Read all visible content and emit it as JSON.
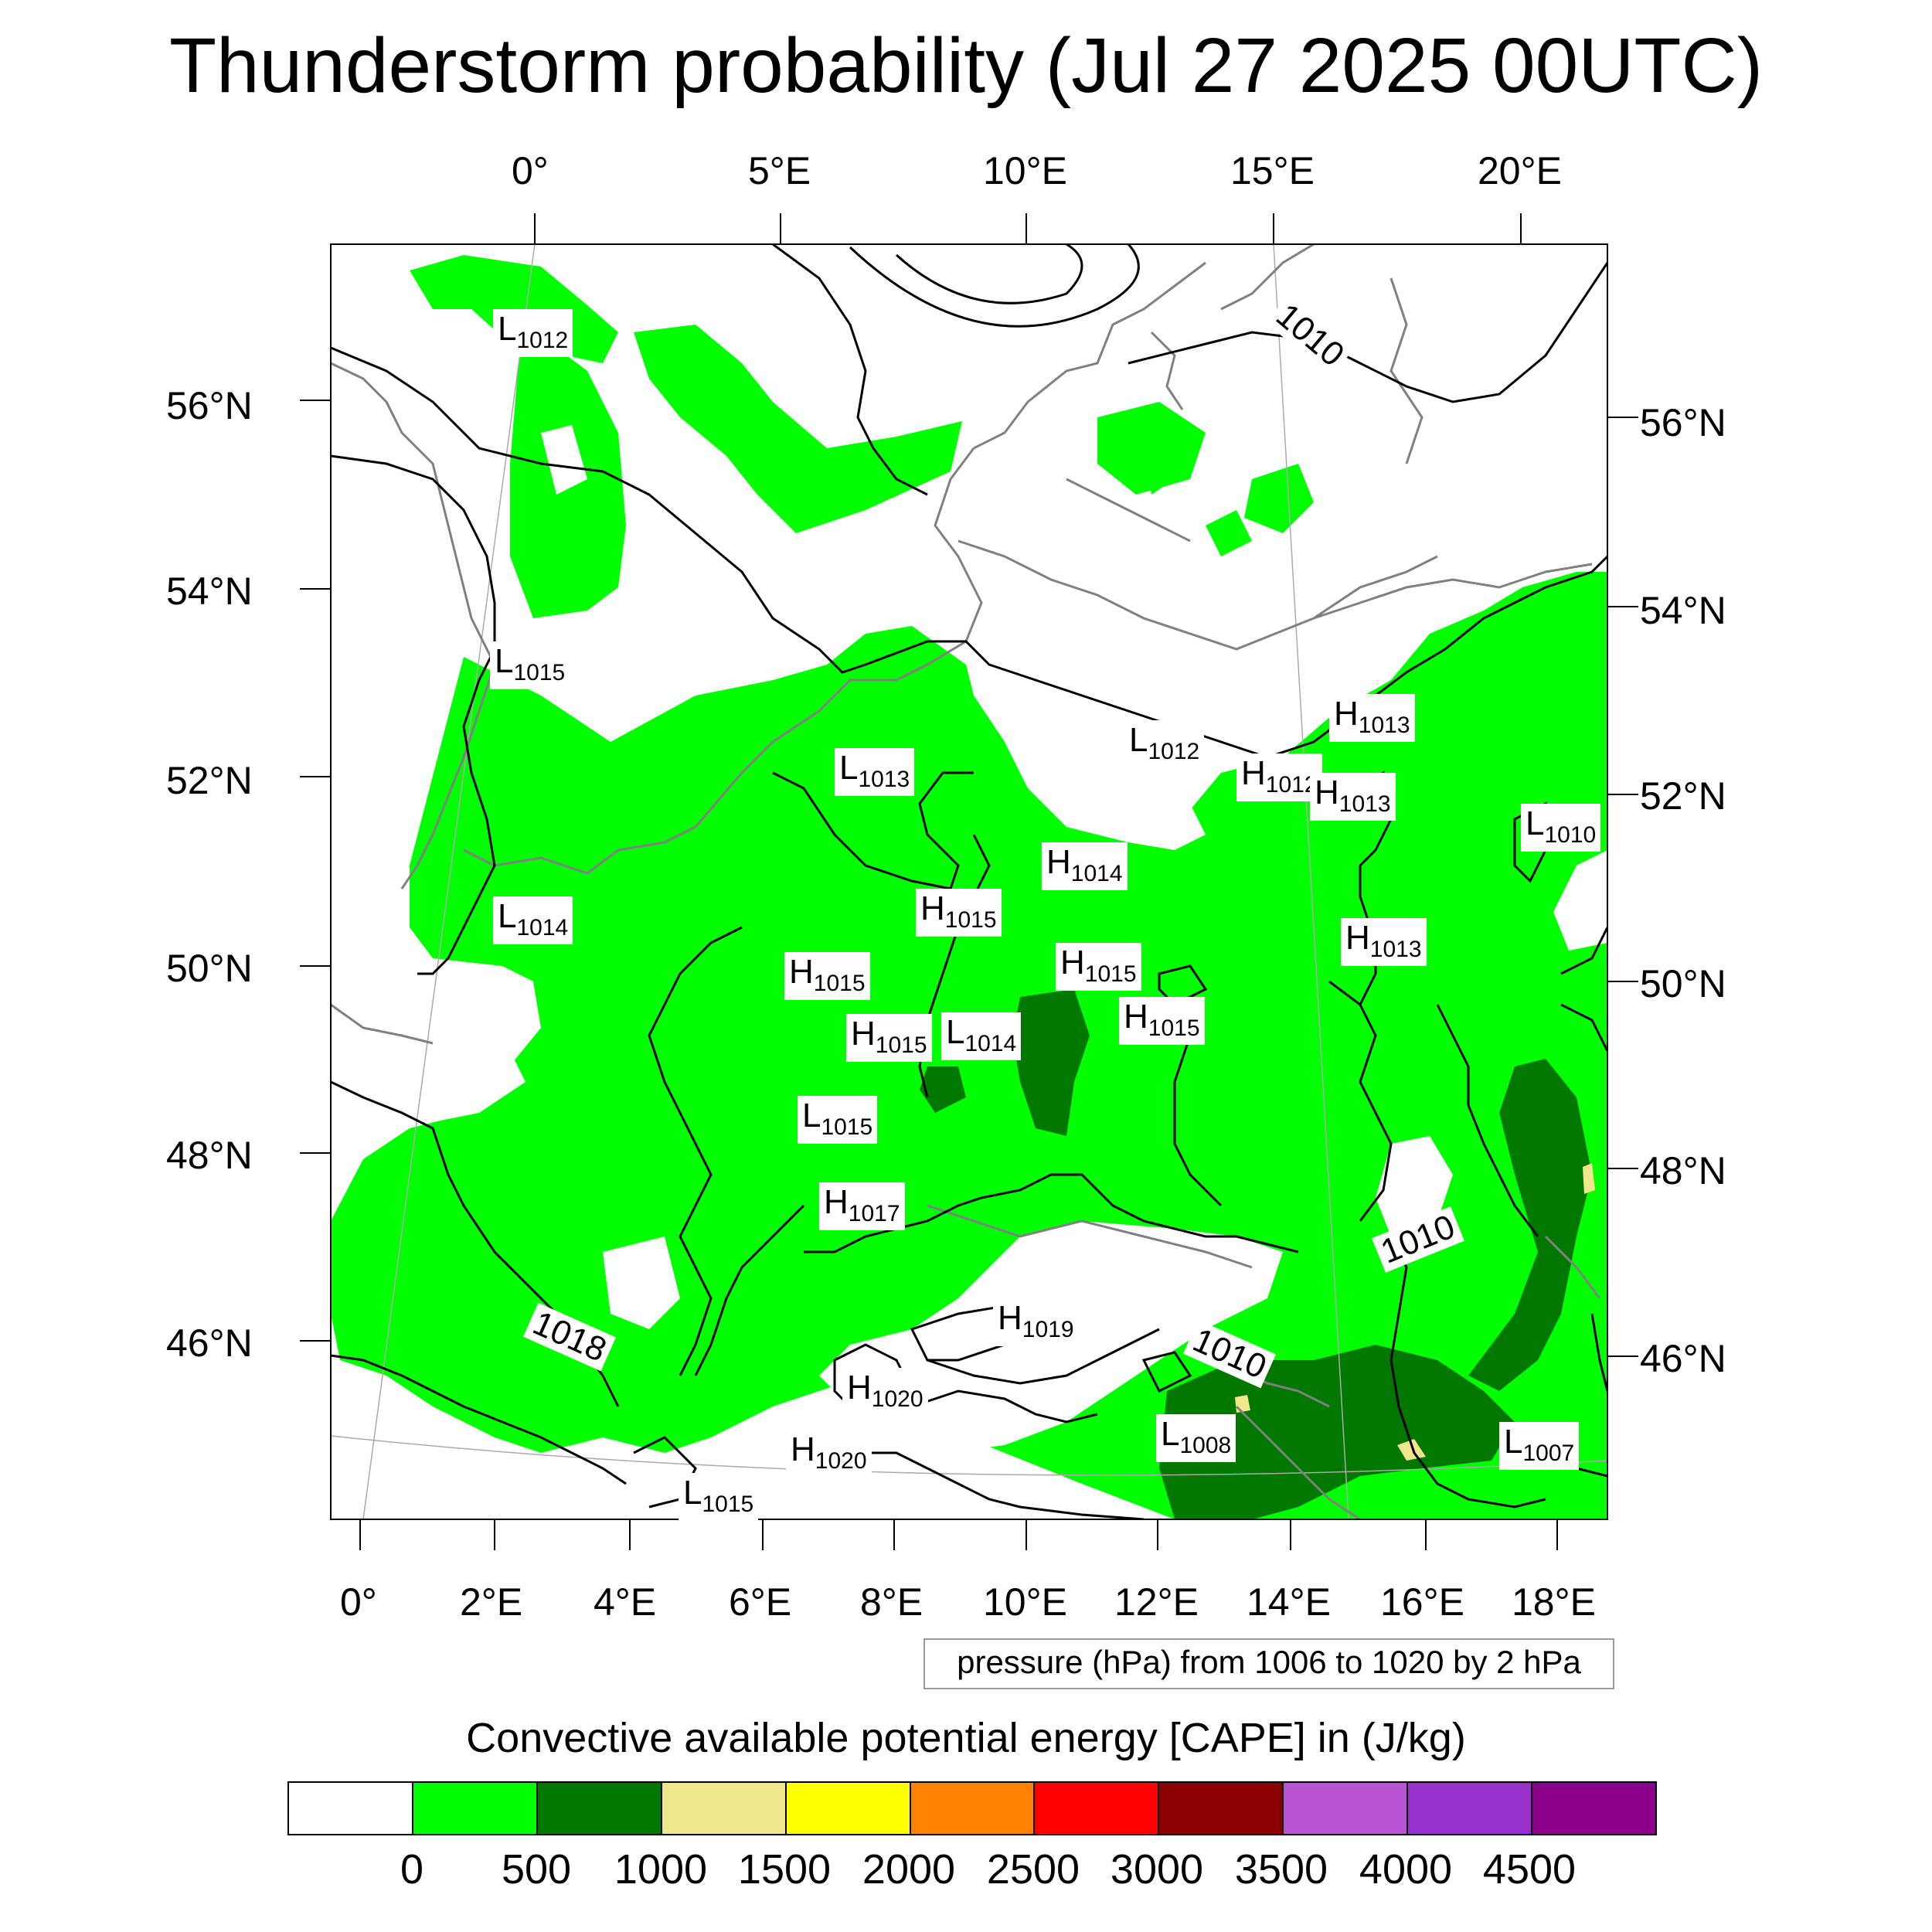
{
  "title": "Thunderstorm probability (Jul 27 2025 00UTC)",
  "top_lon_labels": [
    "0°",
    "5°E",
    "10°E",
    "15°E",
    "20°E"
  ],
  "bottom_lon_labels": [
    "0°",
    "2°E",
    "4°E",
    "6°E",
    "8°E",
    "10°E",
    "12°E",
    "14°E",
    "16°E",
    "18°E"
  ],
  "left_lat_labels": [
    "56°N",
    "54°N",
    "52°N",
    "50°N",
    "48°N",
    "46°N"
  ],
  "right_lat_labels": [
    "56°N",
    "54°N",
    "52°N",
    "50°N",
    "48°N",
    "46°N"
  ],
  "pressure_centers": [
    {
      "type": "L",
      "value": "1012"
    },
    {
      "type": "L",
      "value": "1015"
    },
    {
      "type": "L",
      "value": "1013"
    },
    {
      "type": "L",
      "value": "1012"
    },
    {
      "type": "H",
      "value": "1013"
    },
    {
      "type": "H",
      "value": "1012"
    },
    {
      "type": "H",
      "value": "1013"
    },
    {
      "type": "L",
      "value": "1010"
    },
    {
      "type": "H",
      "value": "1014"
    },
    {
      "type": "L",
      "value": "1014"
    },
    {
      "type": "H",
      "value": "1015"
    },
    {
      "type": "H",
      "value": "1015"
    },
    {
      "type": "H",
      "value": "1015"
    },
    {
      "type": "L",
      "value": "1014"
    },
    {
      "type": "H",
      "value": "1015"
    },
    {
      "type": "H",
      "value": "1015"
    },
    {
      "type": "H",
      "value": "1013"
    },
    {
      "type": "L",
      "value": "1015"
    },
    {
      "type": "H",
      "value": "1017"
    },
    {
      "type": "H",
      "value": "1019"
    },
    {
      "type": "H",
      "value": "1020"
    },
    {
      "type": "H",
      "value": "1020"
    },
    {
      "type": "L",
      "value": "1015"
    },
    {
      "type": "L",
      "value": "1008"
    },
    {
      "type": "L",
      "value": "1007"
    }
  ],
  "isobar_labels": [
    "1010",
    "1010",
    "1018",
    "1010"
  ],
  "pressure_note": "pressure (hPa) from 1006 to 1020 by 2 hPa",
  "colorbar": {
    "title": "Convective available potential energy [CAPE] in (J/kg)",
    "colors": [
      "#ffffff",
      "#00ff00",
      "#007800",
      "#f0e68c",
      "#ffff00",
      "#ff8200",
      "#ff0000",
      "#8b0000",
      "#b954d4",
      "#9932cc",
      "#8b008b"
    ],
    "ticks": [
      "0",
      "500",
      "1000",
      "1500",
      "2000",
      "2500",
      "3000",
      "3500",
      "4000",
      "4500"
    ]
  }
}
